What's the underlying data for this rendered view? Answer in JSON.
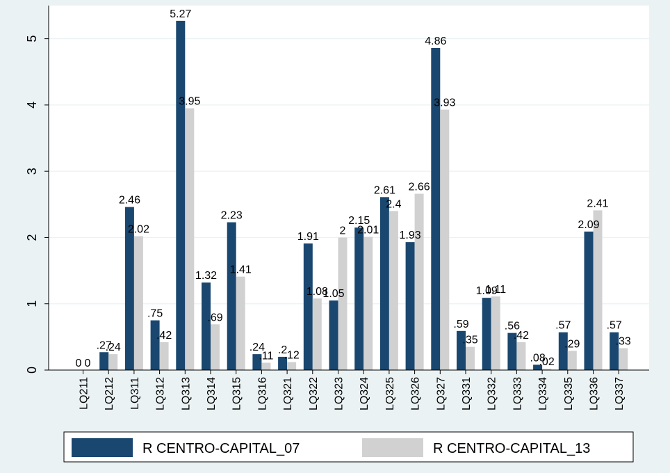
{
  "chart_data": {
    "type": "bar",
    "title": "",
    "xlabel": "",
    "ylabel": "",
    "ylim": [
      0,
      5.5
    ],
    "yticks": [
      0,
      1,
      2,
      3,
      4,
      5
    ],
    "ytick_labels": [
      "0",
      "1",
      "2",
      "3",
      "4",
      "5"
    ],
    "grid": true,
    "legend_position": "bottom",
    "categories": [
      "LQ211",
      "LQ212",
      "LQ311",
      "LQ312",
      "LQ313",
      "LQ314",
      "LQ315",
      "LQ316",
      "LQ321",
      "LQ322",
      "LQ323",
      "LQ324",
      "LQ325",
      "LQ326",
      "LQ327",
      "LQ331",
      "LQ332",
      "LQ333",
      "LQ334",
      "LQ335",
      "LQ336",
      "LQ337"
    ],
    "series": [
      {
        "name": "R CENTRO-CAPITAL_07",
        "color": "#1a476f",
        "values": [
          0,
          0.27,
          2.46,
          0.75,
          5.27,
          1.32,
          2.23,
          0.24,
          0.2,
          1.91,
          1.05,
          2.15,
          2.61,
          1.93,
          4.86,
          0.59,
          1.09,
          0.56,
          0.08,
          0.57,
          2.09,
          0.57
        ],
        "labels": [
          "0",
          ".27",
          "2.46",
          ".75",
          "5.27",
          "1.32",
          "2.23",
          ".24",
          ".2",
          "1.91",
          "1.05",
          "2.15",
          "2.61",
          "1.93",
          "4.86",
          ".59",
          "1.09",
          ".56",
          ".08",
          ".57",
          "2.09",
          ".57"
        ]
      },
      {
        "name": "R CENTRO-CAPITAL_13",
        "color": "#d1d1d1",
        "values": [
          0,
          0.24,
          2.02,
          0.42,
          3.95,
          0.69,
          1.41,
          0.11,
          0.12,
          1.08,
          2,
          2.01,
          2.4,
          2.66,
          3.93,
          0.35,
          1.11,
          0.42,
          0.02,
          0.29,
          2.41,
          0.33
        ],
        "labels": [
          "0",
          ".24",
          "2.02",
          ".42",
          "3.95",
          ".69",
          "1.41",
          ".11",
          ".12",
          "1.08",
          "2",
          "2.01",
          "2.4",
          "2.66",
          "3.93",
          ".35",
          "1.11",
          ".42",
          ".02",
          ".29",
          "2.41",
          ".33"
        ]
      }
    ]
  },
  "colors": {
    "page_background": "#eaf2f3",
    "plot_background": "#ffffff",
    "gridline": "#eaf2f3"
  }
}
